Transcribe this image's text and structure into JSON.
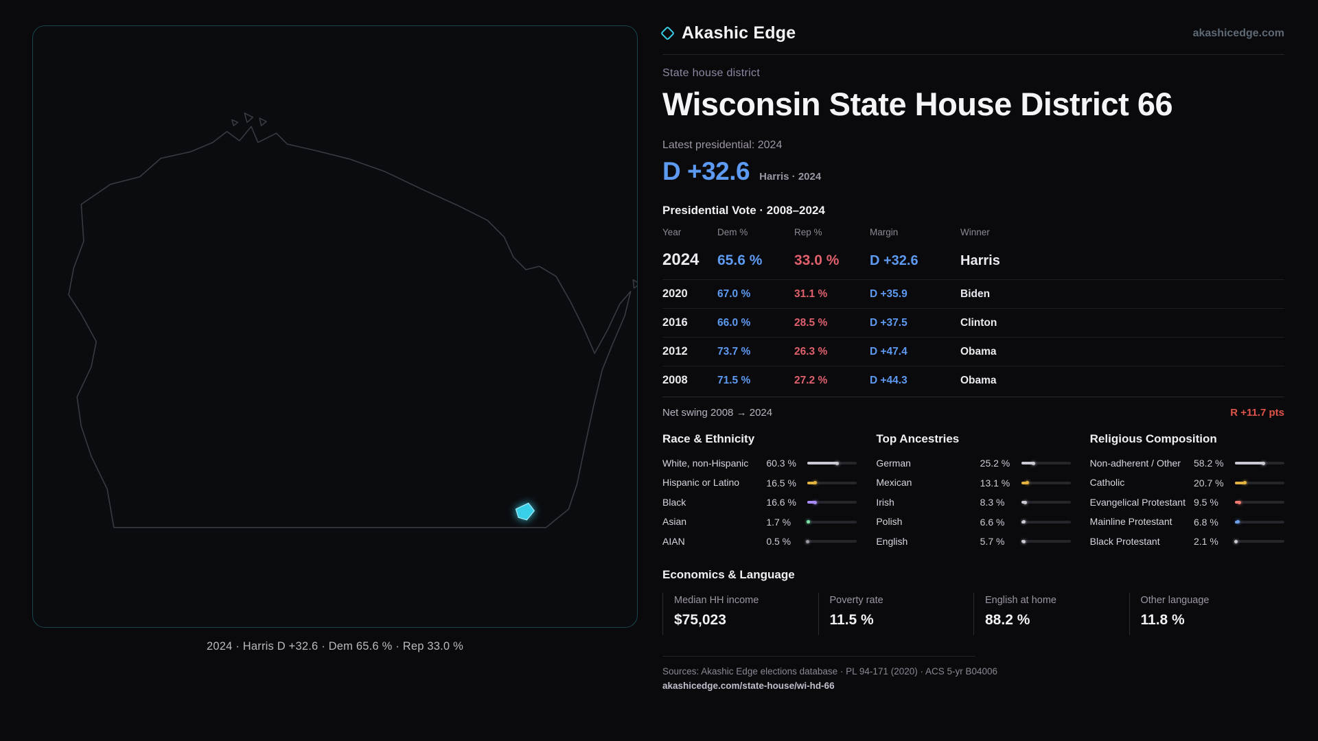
{
  "brand": {
    "name": "Akashic Edge",
    "site": "akashicedge.com"
  },
  "colors": {
    "accent": "#38cfe8",
    "dem": "#5d9af2",
    "rep": "#e0606c",
    "swing": "#e2544a",
    "outline": "#3a3b42"
  },
  "map_panel": {
    "state_name": "Wisconsin",
    "caption": "2024 · Harris D +32.6 · Dem 65.6 % · Rep 33.0 %"
  },
  "district": {
    "kicker": "State house district",
    "title": "Wisconsin State House District 66",
    "latest_label": "Latest presidential: 2024",
    "headline_margin": "D +32.6",
    "headline_note": "Harris · 2024"
  },
  "vote_table": {
    "title": "Presidential Vote · 2008–2024",
    "columns": {
      "year": "Year",
      "dem": "Dem %",
      "rep": "Rep %",
      "margin": "Margin",
      "winner": "Winner"
    },
    "rows": [
      {
        "year": "2024",
        "dem": "65.6 %",
        "rep": "33.0 %",
        "margin": "D +32.6",
        "winner": "Harris"
      },
      {
        "year": "2020",
        "dem": "67.0 %",
        "rep": "31.1 %",
        "margin": "D +35.9",
        "winner": "Biden"
      },
      {
        "year": "2016",
        "dem": "66.0 %",
        "rep": "28.5 %",
        "margin": "D +37.5",
        "winner": "Clinton"
      },
      {
        "year": "2012",
        "dem": "73.7 %",
        "rep": "26.3 %",
        "margin": "D +47.4",
        "winner": "Obama"
      },
      {
        "year": "2008",
        "dem": "71.5 %",
        "rep": "27.2 %",
        "margin": "D +44.3",
        "winner": "Obama"
      }
    ],
    "net_swing_label": "Net swing 2008 → 2024",
    "net_swing_value": "R +11.7 pts"
  },
  "demographics": {
    "race": {
      "title": "Race & Ethnicity",
      "items": [
        {
          "label": "White, non-Hispanic",
          "value": "60.3 %",
          "pct": 60.3,
          "color": "#c9c9d2"
        },
        {
          "label": "Hispanic or Latino",
          "value": "16.5 %",
          "pct": 16.5,
          "color": "#e3b341"
        },
        {
          "label": "Black",
          "value": "16.6 %",
          "pct": 16.6,
          "color": "#a78bfa"
        },
        {
          "label": "Asian",
          "value": "1.7 %",
          "pct": 1.7,
          "color": "#7ee2a8"
        },
        {
          "label": "AIAN",
          "value": "0.5 %",
          "pct": 0.5,
          "color": "#9a9aa4"
        }
      ]
    },
    "ancestries": {
      "title": "Top Ancestries",
      "items": [
        {
          "label": "German",
          "value": "25.2 %",
          "pct": 25.2,
          "color": "#c9c9d2"
        },
        {
          "label": "Mexican",
          "value": "13.1 %",
          "pct": 13.1,
          "color": "#e3b341"
        },
        {
          "label": "Irish",
          "value": "8.3 %",
          "pct": 8.3,
          "color": "#c9c9d2"
        },
        {
          "label": "Polish",
          "value": "6.6 %",
          "pct": 6.6,
          "color": "#c9c9d2"
        },
        {
          "label": "English",
          "value": "5.7 %",
          "pct": 5.7,
          "color": "#c9c9d2"
        }
      ]
    },
    "religion": {
      "title": "Religious Composition",
      "items": [
        {
          "label": "Non-adherent / Other",
          "value": "58.2 %",
          "pct": 58.2,
          "color": "#c9c9d2"
        },
        {
          "label": "Catholic",
          "value": "20.7 %",
          "pct": 20.7,
          "color": "#e3b341"
        },
        {
          "label": "Evangelical Protestant",
          "value": "9.5 %",
          "pct": 9.5,
          "color": "#ef7a70"
        },
        {
          "label": "Mainline Protestant",
          "value": "6.8 %",
          "pct": 6.8,
          "color": "#6ea0e8"
        },
        {
          "label": "Black Protestant",
          "value": "2.1 %",
          "pct": 2.1,
          "color": "#c9c9d2"
        }
      ]
    }
  },
  "economics": {
    "title": "Economics & Language",
    "stats": [
      {
        "label": "Median HH income",
        "value": "$75,023"
      },
      {
        "label": "Poverty rate",
        "value": "11.5 %"
      },
      {
        "label": "English at home",
        "value": "88.2 %"
      },
      {
        "label": "Other language",
        "value": "11.8 %"
      }
    ]
  },
  "footer": {
    "sources": "Sources: Akashic Edge elections database · PL 94-171 (2020) · ACS 5-yr B04006",
    "permalink": "akashicedge.com/state-house/wi-hd-66"
  }
}
